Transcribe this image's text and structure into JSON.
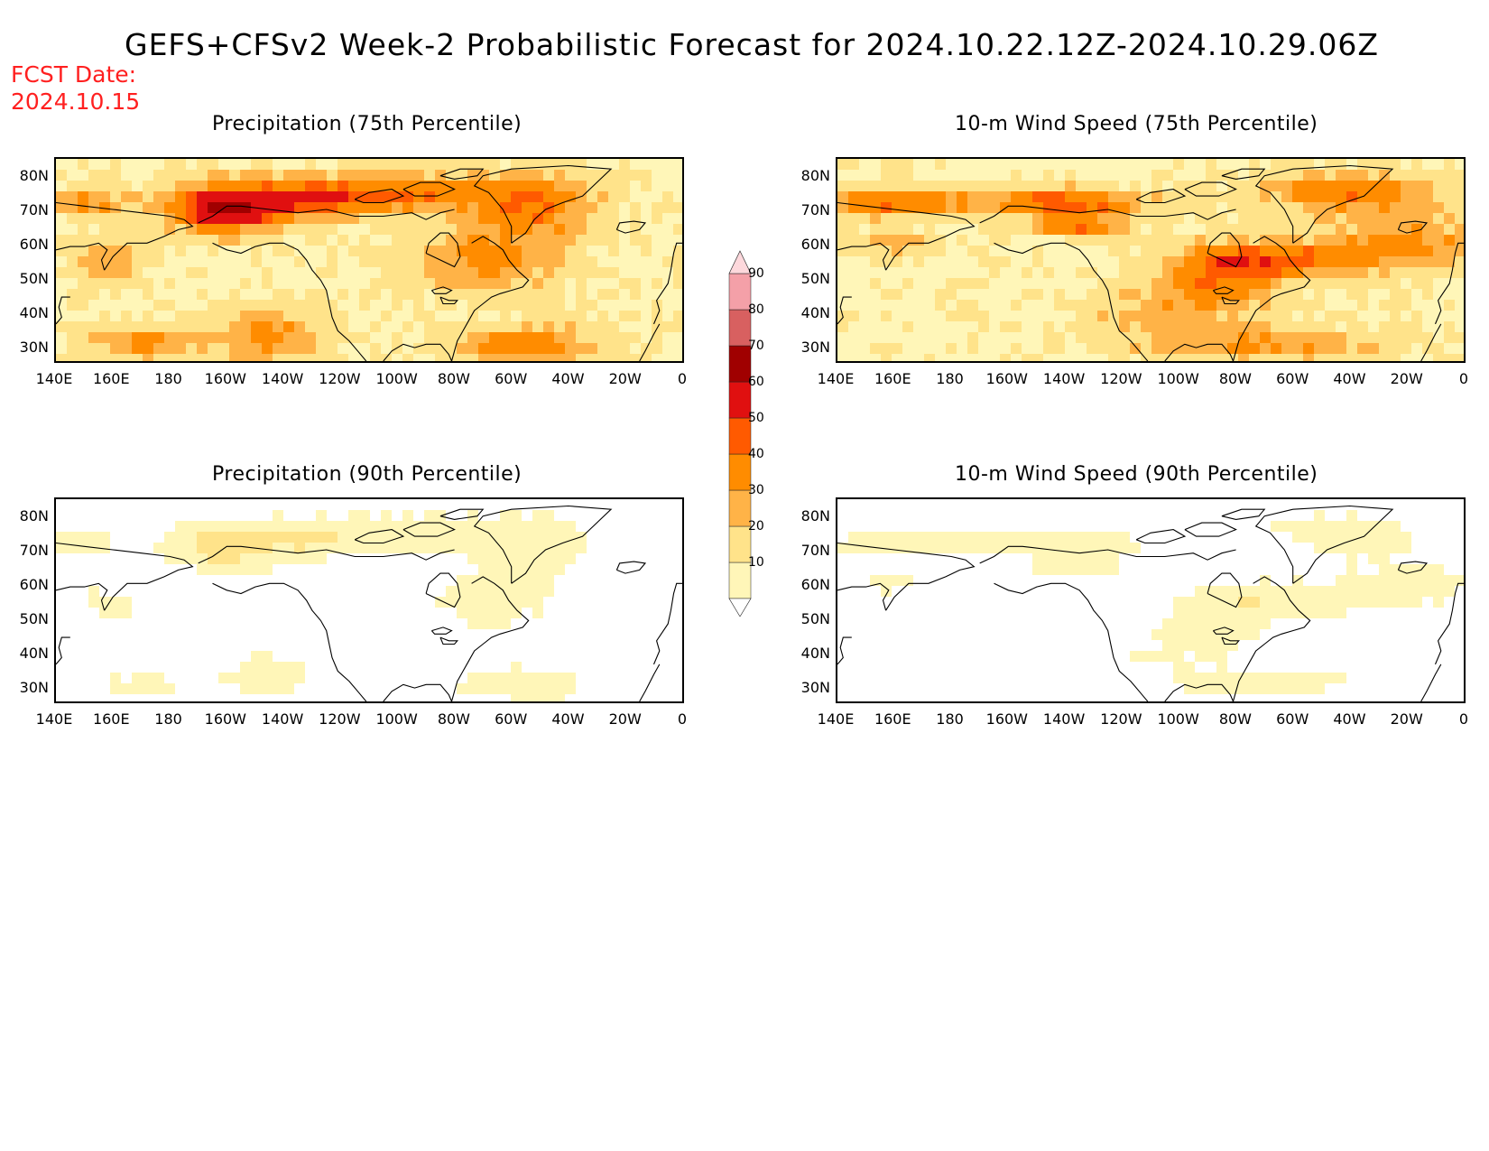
{
  "title": "GEFS+CFSv2 Week-2 Probabilistic Forecast for 2024.10.22.12Z-2024.10.29.06Z",
  "fcst_date_label": "FCST Date:",
  "fcst_date": "2024.10.15",
  "panels": [
    {
      "title": "Precipitation (75th Percentile)",
      "intensity": 1.0,
      "style": "precip"
    },
    {
      "title": "10-m Wind Speed (75th Percentile)",
      "intensity": 1.0,
      "style": "wind"
    },
    {
      "title": "Precipitation (90th Percentile)",
      "intensity": 0.35,
      "style": "precip"
    },
    {
      "title": "10-m Wind Speed (90th Percentile)",
      "intensity": 0.35,
      "style": "wind"
    }
  ],
  "lat_labels": [
    "80N",
    "70N",
    "60N",
    "50N",
    "40N",
    "30N"
  ],
  "lon_labels": [
    "140E",
    "160E",
    "180",
    "160W",
    "140W",
    "120W",
    "100W",
    "80W",
    "60W",
    "40W",
    "20W",
    "0"
  ],
  "colorbar": {
    "levels": [
      "10",
      "20",
      "30",
      "40",
      "50",
      "60",
      "70",
      "80",
      "90"
    ],
    "colors": [
      "#fff6b8",
      "#ffe38a",
      "#ffb347",
      "#ff8c00",
      "#ff5a00",
      "#e01010",
      "#a00000",
      "#d86060",
      "#f4a0a8",
      "#fdd8dc"
    ]
  }
}
